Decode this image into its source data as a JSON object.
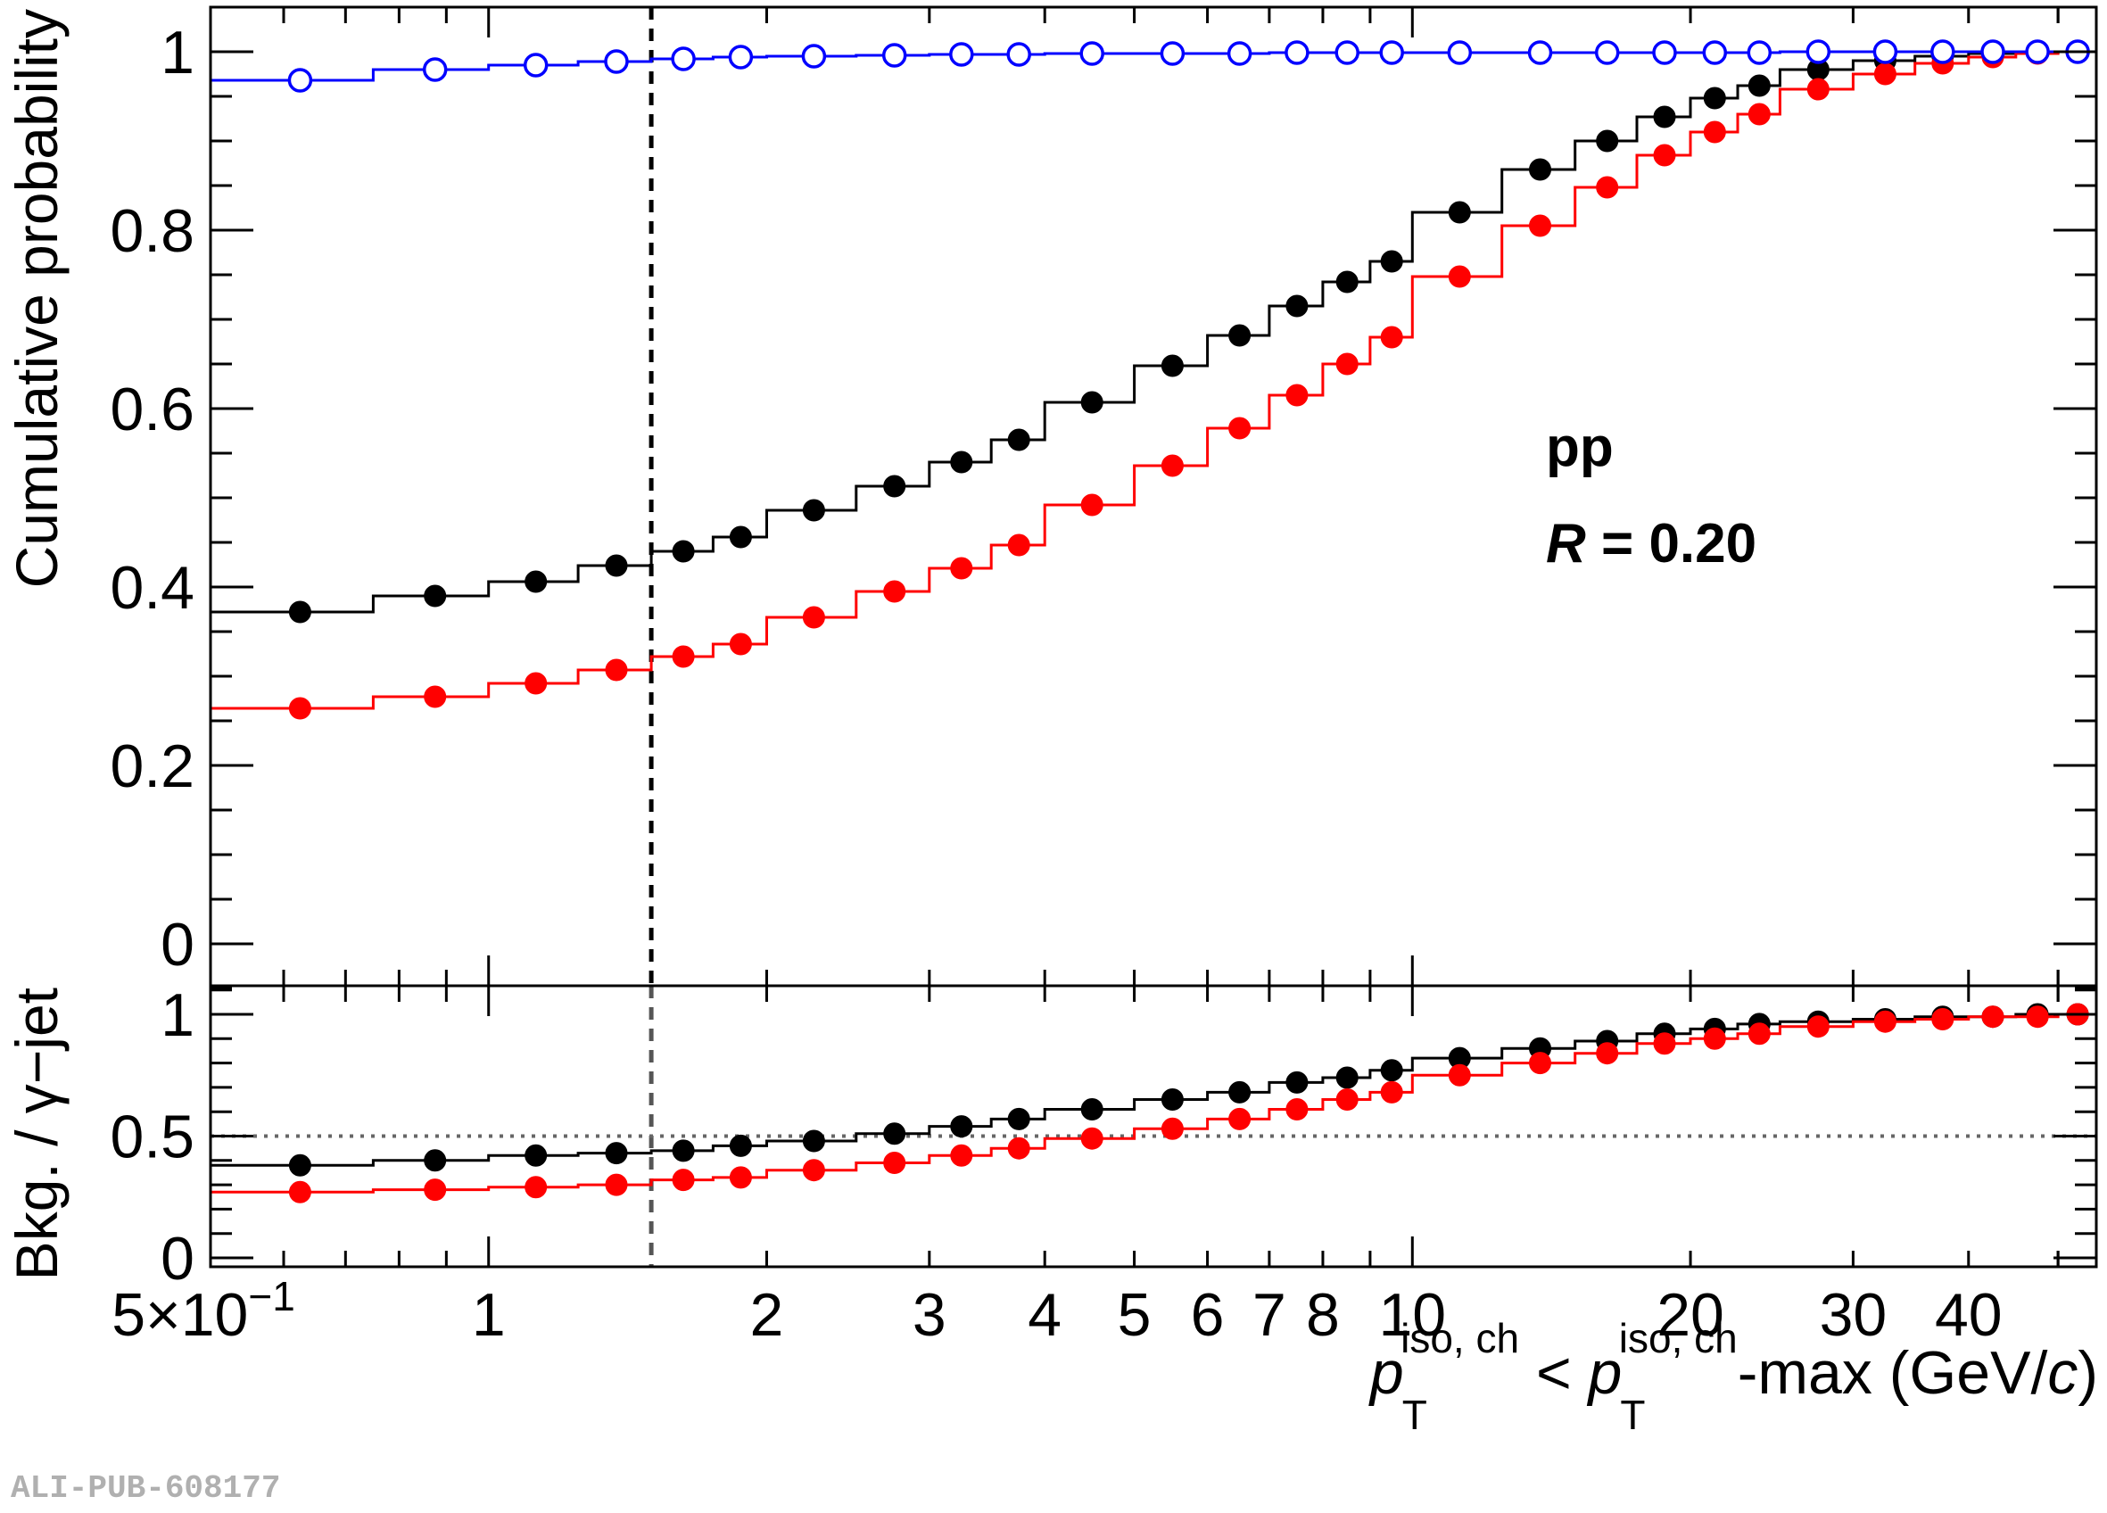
{
  "chart_data": [
    {
      "type": "line",
      "panel": "top",
      "ylabel": "Cumulative probability",
      "xscale": "log",
      "xlim": [
        0.5,
        55
      ],
      "ylim": [
        -0.05,
        1.05
      ],
      "yticks": [
        0,
        0.2,
        0.4,
        0.6,
        0.8,
        1
      ],
      "ytick_labels": [
        "0",
        "0.2",
        "0.4",
        "0.6",
        "0.8",
        "1"
      ],
      "annotations": [
        "pp",
        "R = 0.20"
      ],
      "bin_edges": [
        0.5,
        0.75,
        1.0,
        1.25,
        1.5,
        1.75,
        2.0,
        2.5,
        3.0,
        3.5,
        4.0,
        5.0,
        6.0,
        7.0,
        8.0,
        9.0,
        10.0,
        12.5,
        15.0,
        17.5,
        20.0,
        22.5,
        25.0,
        30.0,
        35.0,
        40.0,
        45.0,
        50.0,
        55.0
      ],
      "series": [
        {
          "color": "#000000",
          "marker": "filled-circle",
          "values": [
            0.372,
            0.39,
            0.406,
            0.424,
            0.44,
            0.456,
            0.486,
            0.513,
            0.54,
            0.565,
            0.607,
            0.648,
            0.682,
            0.715,
            0.742,
            0.765,
            0.82,
            0.868,
            0.9,
            0.927,
            0.948,
            0.962,
            0.98,
            0.99,
            0.995,
            0.998,
            0.999,
            1.0
          ]
        },
        {
          "color": "#ff0000",
          "marker": "filled-circle",
          "values": [
            0.264,
            0.277,
            0.292,
            0.307,
            0.322,
            0.336,
            0.366,
            0.395,
            0.421,
            0.447,
            0.492,
            0.536,
            0.578,
            0.615,
            0.65,
            0.68,
            0.748,
            0.805,
            0.848,
            0.884,
            0.91,
            0.93,
            0.958,
            0.975,
            0.987,
            0.994,
            0.998,
            1.0
          ]
        },
        {
          "color": "#0000ff",
          "marker": "open-circle",
          "values": [
            0.968,
            0.98,
            0.985,
            0.989,
            0.992,
            0.994,
            0.995,
            0.996,
            0.997,
            0.997,
            0.998,
            0.998,
            0.998,
            0.999,
            0.999,
            0.999,
            0.999,
            0.999,
            0.999,
            0.999,
            0.999,
            0.999,
            1.0,
            1.0,
            1.0,
            1.0,
            1.0,
            1.0
          ]
        }
      ],
      "reference_line_x": 1.5
    },
    {
      "type": "line",
      "panel": "bottom",
      "ylabel": "Bkg. / γ−jet",
      "xlabel": "p_T^{iso, ch} < p_T^{iso, ch}-max (GeV/c)",
      "xscale": "log",
      "xlim": [
        0.5,
        55
      ],
      "ylim": [
        0,
        1.1
      ],
      "yticks": [
        0,
        0.5,
        1
      ],
      "ytick_labels": [
        "0",
        "0.5",
        "1"
      ],
      "xticks": [
        0.5,
        1,
        2,
        3,
        4,
        5,
        6,
        7,
        8,
        10,
        20,
        30,
        40
      ],
      "xtick_labels": [
        "5×10⁻¹",
        "1",
        "2",
        "3",
        "4",
        "5",
        "6",
        "7",
        "8",
        "10",
        "20",
        "30",
        "40"
      ],
      "bin_edges": [
        0.5,
        0.75,
        1.0,
        1.25,
        1.5,
        1.75,
        2.0,
        2.5,
        3.0,
        3.5,
        4.0,
        5.0,
        6.0,
        7.0,
        8.0,
        9.0,
        10.0,
        12.5,
        15.0,
        17.5,
        20.0,
        22.5,
        25.0,
        30.0,
        35.0,
        40.0,
        45.0,
        50.0,
        55.0
      ],
      "series": [
        {
          "color": "#000000",
          "marker": "filled-circle",
          "values": [
            0.38,
            0.4,
            0.42,
            0.43,
            0.44,
            0.46,
            0.48,
            0.51,
            0.54,
            0.57,
            0.61,
            0.65,
            0.68,
            0.72,
            0.74,
            0.77,
            0.82,
            0.86,
            0.89,
            0.92,
            0.94,
            0.96,
            0.97,
            0.98,
            0.99,
            0.99,
            1.0,
            1.0
          ]
        },
        {
          "color": "#ff0000",
          "marker": "filled-circle",
          "values": [
            0.27,
            0.28,
            0.29,
            0.3,
            0.32,
            0.33,
            0.36,
            0.39,
            0.42,
            0.45,
            0.49,
            0.53,
            0.57,
            0.61,
            0.65,
            0.68,
            0.75,
            0.8,
            0.84,
            0.88,
            0.9,
            0.92,
            0.95,
            0.97,
            0.98,
            0.99,
            0.99,
            1.0
          ]
        }
      ],
      "reference_line_x": 1.5,
      "reference_line_y": 0.5
    }
  ],
  "watermark": "ALI-PUB-608177"
}
